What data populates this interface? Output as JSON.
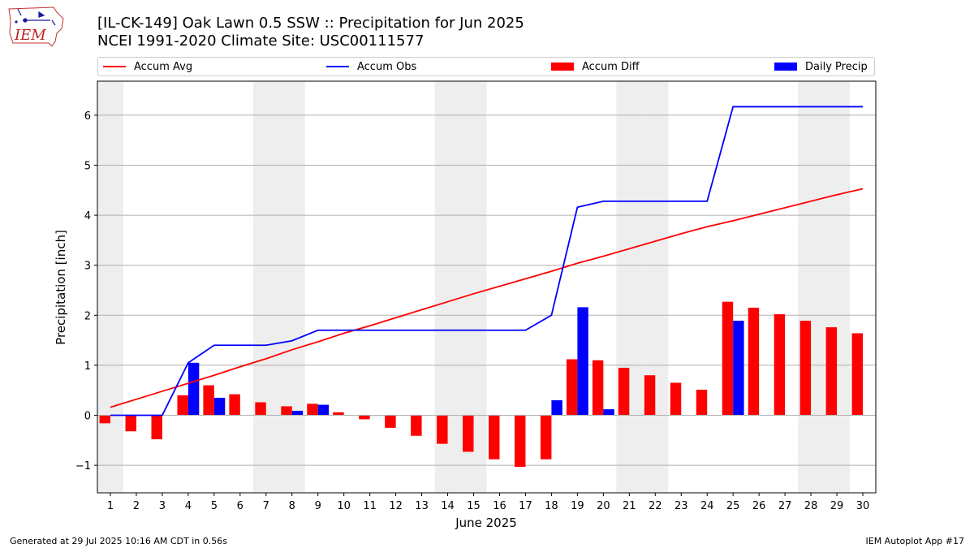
{
  "header": {
    "title": "[IL-CK-149] Oak Lawn 0.5 SSW :: Precipitation for Jun 2025",
    "subtitle": "NCEI 1991-2020 Climate Site: USC00111577",
    "logo_text": "IEM"
  },
  "footer": {
    "generated": "Generated at 29 Jul 2025 10:16 AM CDT in 0.56s",
    "app": "IEM Autoplot App #17"
  },
  "colors": {
    "avg": "#ff0000",
    "obs": "#0000ff",
    "diff": "#ff0000",
    "daily": "#0000ff",
    "weekend_shade": "#eeeeee",
    "grid": "#b0b0b0"
  },
  "chart_data": {
    "type": "bar",
    "title": "[IL-CK-149] Oak Lawn 0.5 SSW :: Precipitation for Jun 2025",
    "xlabel": "June 2025",
    "ylabel": "Precipitation [inch]",
    "xlim": [
      0.5,
      30.5
    ],
    "ylim": [
      -1.55,
      6.68
    ],
    "yticks": [
      -1,
      0,
      1,
      2,
      3,
      4,
      5,
      6
    ],
    "ytick_labels": [
      "−1",
      "0",
      "1",
      "2",
      "3",
      "4",
      "5",
      "6"
    ],
    "grid": "horizontal",
    "legend_position": "top",
    "shaded_days": [
      1,
      7,
      8,
      14,
      15,
      21,
      22,
      28,
      29
    ],
    "days": [
      1,
      2,
      3,
      4,
      5,
      6,
      7,
      8,
      9,
      10,
      11,
      12,
      13,
      14,
      15,
      16,
      17,
      18,
      19,
      20,
      21,
      22,
      23,
      24,
      25,
      26,
      27,
      28,
      29,
      30
    ],
    "series": [
      {
        "name": "Accum Avg",
        "kind": "line",
        "values": [
          0.16,
          0.32,
          0.48,
          0.64,
          0.8,
          0.97,
          1.13,
          1.31,
          1.47,
          1.64,
          1.79,
          1.95,
          2.11,
          2.27,
          2.43,
          2.58,
          2.73,
          2.88,
          3.04,
          3.18,
          3.33,
          3.48,
          3.63,
          3.77,
          3.89,
          4.02,
          4.15,
          4.28,
          4.41,
          4.53
        ]
      },
      {
        "name": "Accum Obs",
        "kind": "line",
        "values": [
          0,
          0,
          0,
          1.05,
          1.4,
          1.4,
          1.4,
          1.49,
          1.7,
          1.7,
          1.7,
          1.7,
          1.7,
          1.7,
          1.7,
          1.7,
          1.7,
          2.0,
          4.16,
          4.28,
          4.28,
          4.28,
          4.28,
          4.28,
          6.17,
          6.17,
          6.17,
          6.17,
          6.17,
          6.17
        ]
      },
      {
        "name": "Accum Diff",
        "kind": "bar",
        "values": [
          -0.16,
          -0.32,
          -0.48,
          0.4,
          0.6,
          0.42,
          0.26,
          0.18,
          0.23,
          0.06,
          -0.08,
          -0.25,
          -0.41,
          -0.57,
          -0.73,
          -0.88,
          -1.03,
          -0.88,
          1.12,
          1.1,
          0.95,
          0.8,
          0.65,
          0.51,
          2.27,
          2.15,
          2.02,
          1.89,
          1.76,
          1.64
        ]
      },
      {
        "name": "Daily Precip",
        "kind": "bar",
        "values": [
          0,
          0,
          0,
          1.05,
          0.35,
          0,
          0,
          0.09,
          0.21,
          0,
          0,
          0,
          0,
          0,
          0,
          0,
          0,
          0.3,
          2.16,
          0.12,
          0,
          0,
          0,
          0,
          1.89,
          0,
          0,
          0,
          0,
          0
        ]
      }
    ]
  }
}
